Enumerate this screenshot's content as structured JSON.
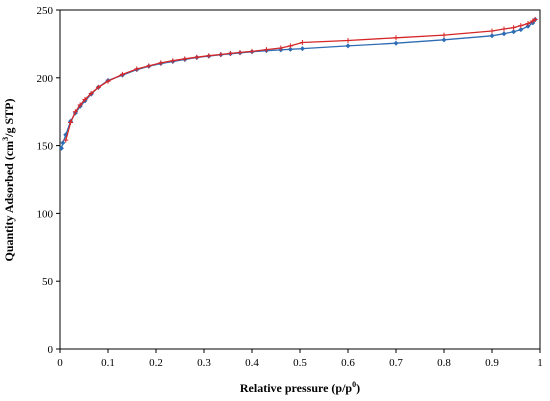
{
  "chart_data": {
    "type": "line",
    "xlabel_main": "Relative pressure (p/p",
    "xlabel_sup": "0",
    "xlabel_end": ")",
    "ylabel_main": "Quantity Adsorbed (cm",
    "ylabel_sup": "3",
    "ylabel_end": "/g STP)",
    "xlim": [
      0,
      1
    ],
    "ylim": [
      0,
      250
    ],
    "xticks": [
      "0",
      "0.1",
      "0.2",
      "0.3",
      "0.4",
      "0.5",
      "0.6",
      "0.7",
      "0.8",
      "0.9",
      "1"
    ],
    "yticks": [
      "0",
      "50",
      "100",
      "150",
      "200",
      "250"
    ],
    "grid": false,
    "series": [
      {
        "color": "#2e6db4",
        "marker": "diamond",
        "x": [
          0.003,
          0.006,
          0.012,
          0.022,
          0.032,
          0.042,
          0.052,
          0.065,
          0.08,
          0.1,
          0.13,
          0.16,
          0.185,
          0.21,
          0.235,
          0.26,
          0.285,
          0.31,
          0.335,
          0.355,
          0.375,
          0.4,
          0.43,
          0.46,
          0.48,
          0.505,
          0.6,
          0.7,
          0.8,
          0.9,
          0.925,
          0.945,
          0.96,
          0.975,
          0.985,
          0.99
        ],
        "y": [
          148,
          152,
          158,
          168,
          174,
          179,
          183,
          188,
          193,
          198,
          202,
          206,
          208.5,
          210.5,
          212,
          213.5,
          215,
          216,
          217,
          217.7,
          218.4,
          219.2,
          220,
          220.6,
          221,
          221.5,
          223.5,
          225.5,
          228,
          231,
          232.5,
          234,
          235.5,
          238,
          240.5,
          243
        ]
      },
      {
        "color": "#d62728",
        "marker": "plus",
        "x": [
          0.99,
          0.985,
          0.975,
          0.96,
          0.945,
          0.925,
          0.9,
          0.8,
          0.7,
          0.6,
          0.505,
          0.48,
          0.46,
          0.43,
          0.4,
          0.375,
          0.355,
          0.335,
          0.31,
          0.285,
          0.26,
          0.235,
          0.21,
          0.185,
          0.16,
          0.13,
          0.1,
          0.08,
          0.065,
          0.052,
          0.042,
          0.032,
          0.022,
          0.012
        ],
        "y": [
          243,
          242,
          240,
          238.5,
          237,
          236,
          234.5,
          231.5,
          229.5,
          227.5,
          226,
          223.5,
          222,
          220.8,
          219.5,
          218.7,
          218,
          217.2,
          216.3,
          215.2,
          214,
          212.6,
          211,
          208.8,
          206.5,
          202.5,
          197.5,
          193,
          188.5,
          184,
          180,
          175,
          167,
          154
        ]
      }
    ]
  }
}
